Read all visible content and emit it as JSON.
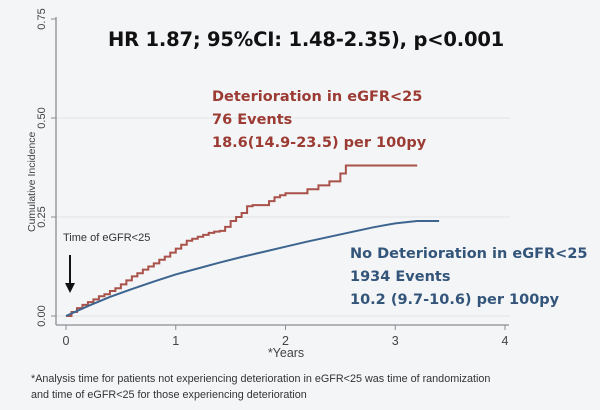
{
  "chart_data": {
    "type": "line",
    "title": "HR 1.87; 95%CI: 1.48-2.35), p<0.001",
    "xlabel": "*Years",
    "ylabel": "Cumulative Incidence",
    "xlim": [
      0,
      4
    ],
    "ylim": [
      0,
      0.75
    ],
    "x_ticks": [
      "0",
      "1",
      "2",
      "3",
      "4"
    ],
    "y_ticks": [
      "0.00",
      "0.25",
      "0.50",
      "0.75"
    ],
    "x_tick_values": [
      0,
      1,
      2,
      3,
      4
    ],
    "y_tick_values": [
      0,
      0.25,
      0.5,
      0.75
    ],
    "grid": "horizontal",
    "step": true,
    "series": [
      {
        "name": "Deterioration in eGFR<25",
        "color": "#a8524a",
        "annotation": [
          "Deterioration in eGFR<25",
          "76 Events",
          "18.6(14.9-23.5) per 100py"
        ],
        "x": [
          0,
          0.05,
          0.1,
          0.15,
          0.2,
          0.25,
          0.3,
          0.35,
          0.4,
          0.45,
          0.5,
          0.55,
          0.6,
          0.65,
          0.7,
          0.75,
          0.8,
          0.85,
          0.9,
          0.95,
          1.0,
          1.05,
          1.1,
          1.15,
          1.2,
          1.25,
          1.3,
          1.35,
          1.4,
          1.45,
          1.5,
          1.55,
          1.6,
          1.65,
          1.7,
          1.75,
          1.8,
          1.85,
          1.9,
          1.95,
          2.0,
          2.05,
          2.1,
          2.15,
          2.2,
          2.3,
          2.4,
          2.5,
          2.55,
          3.2
        ],
        "y": [
          0,
          0.01,
          0.02,
          0.028,
          0.035,
          0.042,
          0.05,
          0.055,
          0.063,
          0.07,
          0.08,
          0.09,
          0.1,
          0.108,
          0.117,
          0.125,
          0.133,
          0.142,
          0.15,
          0.16,
          0.17,
          0.18,
          0.19,
          0.195,
          0.2,
          0.205,
          0.21,
          0.213,
          0.215,
          0.225,
          0.24,
          0.25,
          0.26,
          0.277,
          0.28,
          0.28,
          0.28,
          0.29,
          0.3,
          0.305,
          0.31,
          0.31,
          0.31,
          0.31,
          0.32,
          0.33,
          0.34,
          0.36,
          0.38,
          0.38
        ]
      },
      {
        "name": "No Deterioration in eGFR<25",
        "color": "#3d6590",
        "annotation": [
          "No Deterioration in eGFR<25",
          "1934 Events",
          "10.2 (9.7-10.6) per 100py"
        ],
        "x": [
          0,
          0.2,
          0.4,
          0.6,
          0.8,
          1.0,
          1.2,
          1.4,
          1.6,
          1.8,
          2.0,
          2.2,
          2.4,
          2.6,
          2.8,
          3.0,
          3.2,
          3.4
        ],
        "y": [
          0,
          0.025,
          0.048,
          0.068,
          0.087,
          0.105,
          0.12,
          0.135,
          0.149,
          0.162,
          0.175,
          0.188,
          0.2,
          0.212,
          0.224,
          0.234,
          0.24,
          0.24
        ]
      }
    ],
    "annotations": [
      {
        "text": "Time of eGFR<25",
        "points_to_x": 0,
        "arrow": "down"
      }
    ],
    "footnote": [
      "*Analysis time for patients not experiencing deterioration in eGFR<25 was time of randomization",
      "and time of eGFR<25 for those experiencing deterioration"
    ]
  }
}
